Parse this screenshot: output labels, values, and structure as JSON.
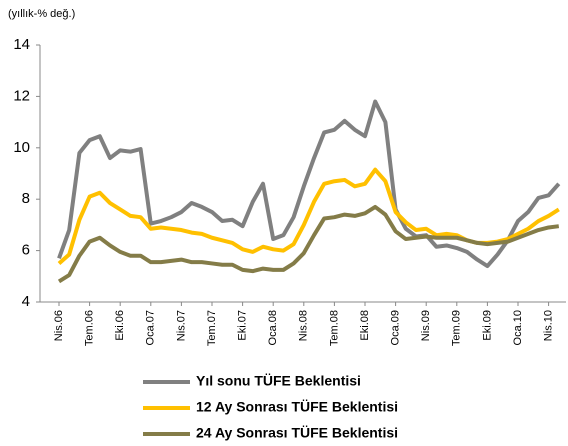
{
  "chart_data": {
    "type": "line",
    "unit_label": "(yıllık-% değ.)",
    "categories": [
      "Nis.06",
      null,
      null,
      "Tem.06",
      null,
      null,
      "Eki.06",
      null,
      null,
      "Oca.07",
      null,
      null,
      "Nis.07",
      null,
      null,
      "Tem.07",
      null,
      null,
      "Eki.07",
      null,
      null,
      "Oca.08",
      null,
      null,
      "Nis.08",
      null,
      null,
      "Tem.08",
      null,
      null,
      "Eki.08",
      null,
      null,
      "Oca.09",
      null,
      null,
      "Nis.09",
      null,
      null,
      "Tem.09",
      null,
      null,
      "Eki.09",
      null,
      null,
      "Oca.10",
      null,
      null,
      "Nis.10",
      null
    ],
    "series": [
      {
        "name": "Yıl sonu TÜFE Beklentisi",
        "color": "#808080",
        "values": [
          5.7,
          6.8,
          9.8,
          10.3,
          10.45,
          9.6,
          9.9,
          9.85,
          9.95,
          7.05,
          7.15,
          7.3,
          7.5,
          7.85,
          7.7,
          7.5,
          7.15,
          7.2,
          6.95,
          7.9,
          8.6,
          6.45,
          6.6,
          7.3,
          8.5,
          9.6,
          10.6,
          10.7,
          11.05,
          10.7,
          10.45,
          11.8,
          11.0,
          7.6,
          6.85,
          6.55,
          6.6,
          6.15,
          6.2,
          6.1,
          5.95,
          5.65,
          5.4,
          5.85,
          6.4,
          7.15,
          7.5,
          8.05,
          8.15,
          8.6
        ]
      },
      {
        "name": "12 Ay Sonrası  TÜFE Beklentisi",
        "color": "#FFC000",
        "values": [
          5.5,
          5.85,
          7.2,
          8.1,
          8.25,
          7.85,
          7.6,
          7.35,
          7.3,
          6.85,
          6.9,
          6.85,
          6.8,
          6.7,
          6.65,
          6.5,
          6.4,
          6.3,
          6.05,
          5.95,
          6.15,
          6.05,
          6.0,
          6.25,
          7.0,
          7.9,
          8.6,
          8.7,
          8.75,
          8.5,
          8.6,
          9.15,
          8.7,
          7.5,
          7.1,
          6.8,
          6.85,
          6.6,
          6.65,
          6.6,
          6.4,
          6.3,
          6.3,
          6.35,
          6.45,
          6.65,
          6.85,
          7.15,
          7.35,
          7.6
        ]
      },
      {
        "name": "24 Ay Sonrası TÜFE Beklentisi",
        "color": "#847C48",
        "values": [
          4.8,
          5.05,
          5.8,
          6.35,
          6.5,
          6.2,
          5.95,
          5.8,
          5.8,
          5.55,
          5.55,
          5.6,
          5.65,
          5.55,
          5.55,
          5.5,
          5.45,
          5.45,
          5.25,
          5.2,
          5.3,
          5.25,
          5.25,
          5.5,
          5.9,
          6.6,
          7.25,
          7.3,
          7.4,
          7.35,
          7.45,
          7.7,
          7.4,
          6.75,
          6.45,
          6.5,
          6.55,
          6.5,
          6.5,
          6.5,
          6.4,
          6.3,
          6.25,
          6.3,
          6.35,
          6.5,
          6.65,
          6.8,
          6.9,
          6.95
        ]
      }
    ],
    "ylim": [
      4,
      14
    ],
    "yticks": [
      4,
      6,
      8,
      10,
      12,
      14
    ]
  }
}
